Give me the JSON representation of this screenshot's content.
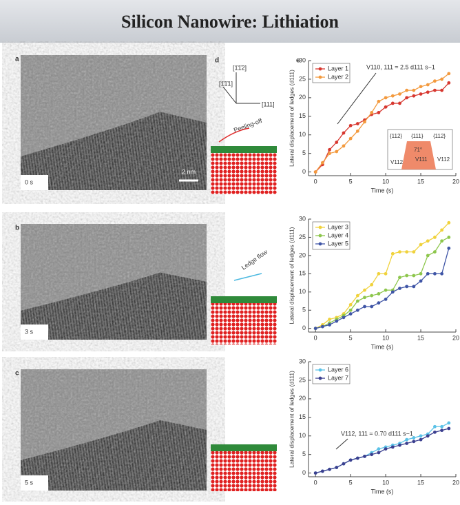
{
  "header": {
    "title": "Silicon Nanowire: Lithiation"
  },
  "panels": [
    {
      "label": "a",
      "time": "0 s",
      "scale": "2 nm"
    },
    {
      "label": "b",
      "time": "3 s"
    },
    {
      "label": "c",
      "time": "5 s"
    }
  ],
  "schematic": {
    "label": "d",
    "directions": [
      "[1̄1̄1]",
      "[1̄1̄2]",
      "[111]"
    ],
    "annotations": [
      "Peeling-off",
      "Ledge flow"
    ]
  },
  "chart_panel_label": "e",
  "chart_data": [
    {
      "type": "line",
      "x_label": "Time (s)",
      "y_label": "Lateral displacement of ledges (d111)",
      "x": [
        0,
        1,
        2,
        3,
        4,
        5,
        6,
        7,
        8,
        9,
        10,
        11,
        12,
        13,
        14,
        15,
        16,
        17,
        18,
        19
      ],
      "xlim": [
        -1,
        20
      ],
      "xticks": [
        0,
        5,
        10,
        15,
        20
      ],
      "ylim": [
        -1,
        30
      ],
      "yticks": [
        0,
        5,
        10,
        15,
        20,
        25,
        30
      ],
      "legend": "upper left",
      "annotation": "V110, 111 ≈ 2.5 d111 s−1",
      "inset_labels": [
        "{112}",
        "{111}",
        "{112}",
        "71°",
        "V112",
        "V111",
        "V112"
      ],
      "series": [
        {
          "name": "Layer 1",
          "color": "#d7372f",
          "values": [
            0,
            2,
            6,
            8,
            10.5,
            12.5,
            13,
            14,
            15.5,
            16,
            17.5,
            18.5,
            18.5,
            20,
            20.5,
            21,
            21.5,
            22,
            22,
            24
          ]
        },
        {
          "name": "Layer 2",
          "color": "#f39a3e",
          "values": [
            0,
            2.5,
            5,
            5.5,
            7,
            9,
            11,
            13.5,
            16,
            19,
            20,
            20.5,
            21,
            22,
            22,
            23,
            23.5,
            24.5,
            25,
            26.5
          ]
        }
      ]
    },
    {
      "type": "line",
      "x_label": "Time (s)",
      "y_label": "Lateral displacement of ledges (d111)",
      "x": [
        0,
        1,
        2,
        3,
        4,
        5,
        6,
        7,
        8,
        9,
        10,
        11,
        12,
        13,
        14,
        15,
        16,
        17,
        18,
        19
      ],
      "xlim": [
        -1,
        20
      ],
      "xticks": [
        0,
        5,
        10,
        15,
        20
      ],
      "ylim": [
        -1,
        30
      ],
      "yticks": [
        0,
        5,
        10,
        15,
        20,
        25,
        30
      ],
      "legend": "upper left",
      "series": [
        {
          "name": "Layer 3",
          "color": "#f0d23c",
          "values": [
            0,
            1,
            2.5,
            3,
            4,
            6.5,
            9,
            10.5,
            12,
            15,
            15,
            20.5,
            21,
            21,
            21,
            23,
            24,
            25,
            27,
            29
          ]
        },
        {
          "name": "Layer 4",
          "color": "#8dc64c",
          "values": [
            0,
            0.5,
            1.5,
            2.5,
            3.5,
            5,
            7.5,
            8.5,
            9,
            9.5,
            10.5,
            10.5,
            14,
            14.5,
            14.5,
            15,
            20,
            21,
            24,
            25
          ]
        },
        {
          "name": "Layer 5",
          "color": "#3f55a6",
          "values": [
            0,
            0.5,
            1,
            2,
            3,
            4,
            5,
            6,
            6,
            7,
            8,
            10,
            11,
            11.5,
            11.5,
            13,
            15,
            15,
            15,
            22
          ]
        }
      ]
    },
    {
      "type": "line",
      "x_label": "Time (s)",
      "y_label": "Lateral displacement of ledges (d111)",
      "x": [
        0,
        1,
        2,
        3,
        4,
        5,
        6,
        7,
        8,
        9,
        10,
        11,
        12,
        13,
        14,
        15,
        16,
        17,
        18,
        19
      ],
      "xlim": [
        -1,
        20
      ],
      "xticks": [
        0,
        5,
        10,
        15,
        20
      ],
      "ylim": [
        -1,
        30
      ],
      "yticks": [
        0,
        5,
        10,
        15,
        20,
        25,
        30
      ],
      "legend": "upper left",
      "annotation": "V112, 111 ≈ 0.70 d111 s−1",
      "series": [
        {
          "name": "Layer 6",
          "color": "#5bc2e7",
          "values": [
            0,
            0.5,
            1,
            1.5,
            2.5,
            3.5,
            4,
            4.5,
            5.5,
            6.5,
            7,
            7.5,
            8,
            9,
            9.5,
            10,
            10.5,
            12.5,
            12.5,
            13.5
          ]
        },
        {
          "name": "Layer 7",
          "color": "#3b3f8f",
          "values": [
            0,
            0.5,
            1,
            1.5,
            2.5,
            3.5,
            4,
            4.5,
            5,
            5.5,
            6.5,
            7,
            7.5,
            8,
            8.5,
            9,
            10,
            11,
            11.5,
            12
          ]
        }
      ]
    }
  ]
}
